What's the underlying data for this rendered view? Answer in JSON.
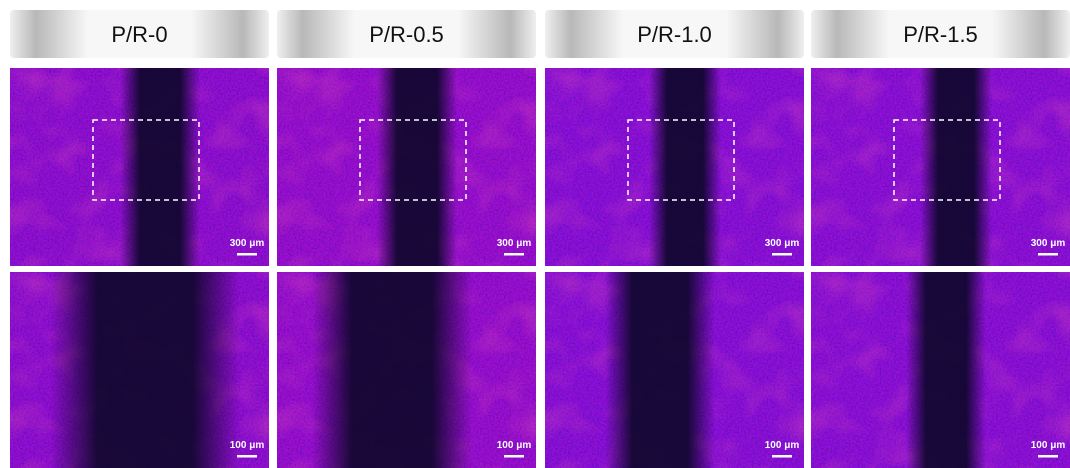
{
  "columns": [
    {
      "label": "P/R-0",
      "overview_scale": "300 μm",
      "detail_scale": "100 μm"
    },
    {
      "label": "P/R-0.5",
      "overview_scale": "300 μm",
      "detail_scale": "100 μm"
    },
    {
      "label": "P/R-1.0",
      "overview_scale": "300 μm",
      "detail_scale": "100 μm"
    },
    {
      "label": "P/R-1.5",
      "overview_scale": "300 μm",
      "detail_scale": "100 μm"
    }
  ]
}
